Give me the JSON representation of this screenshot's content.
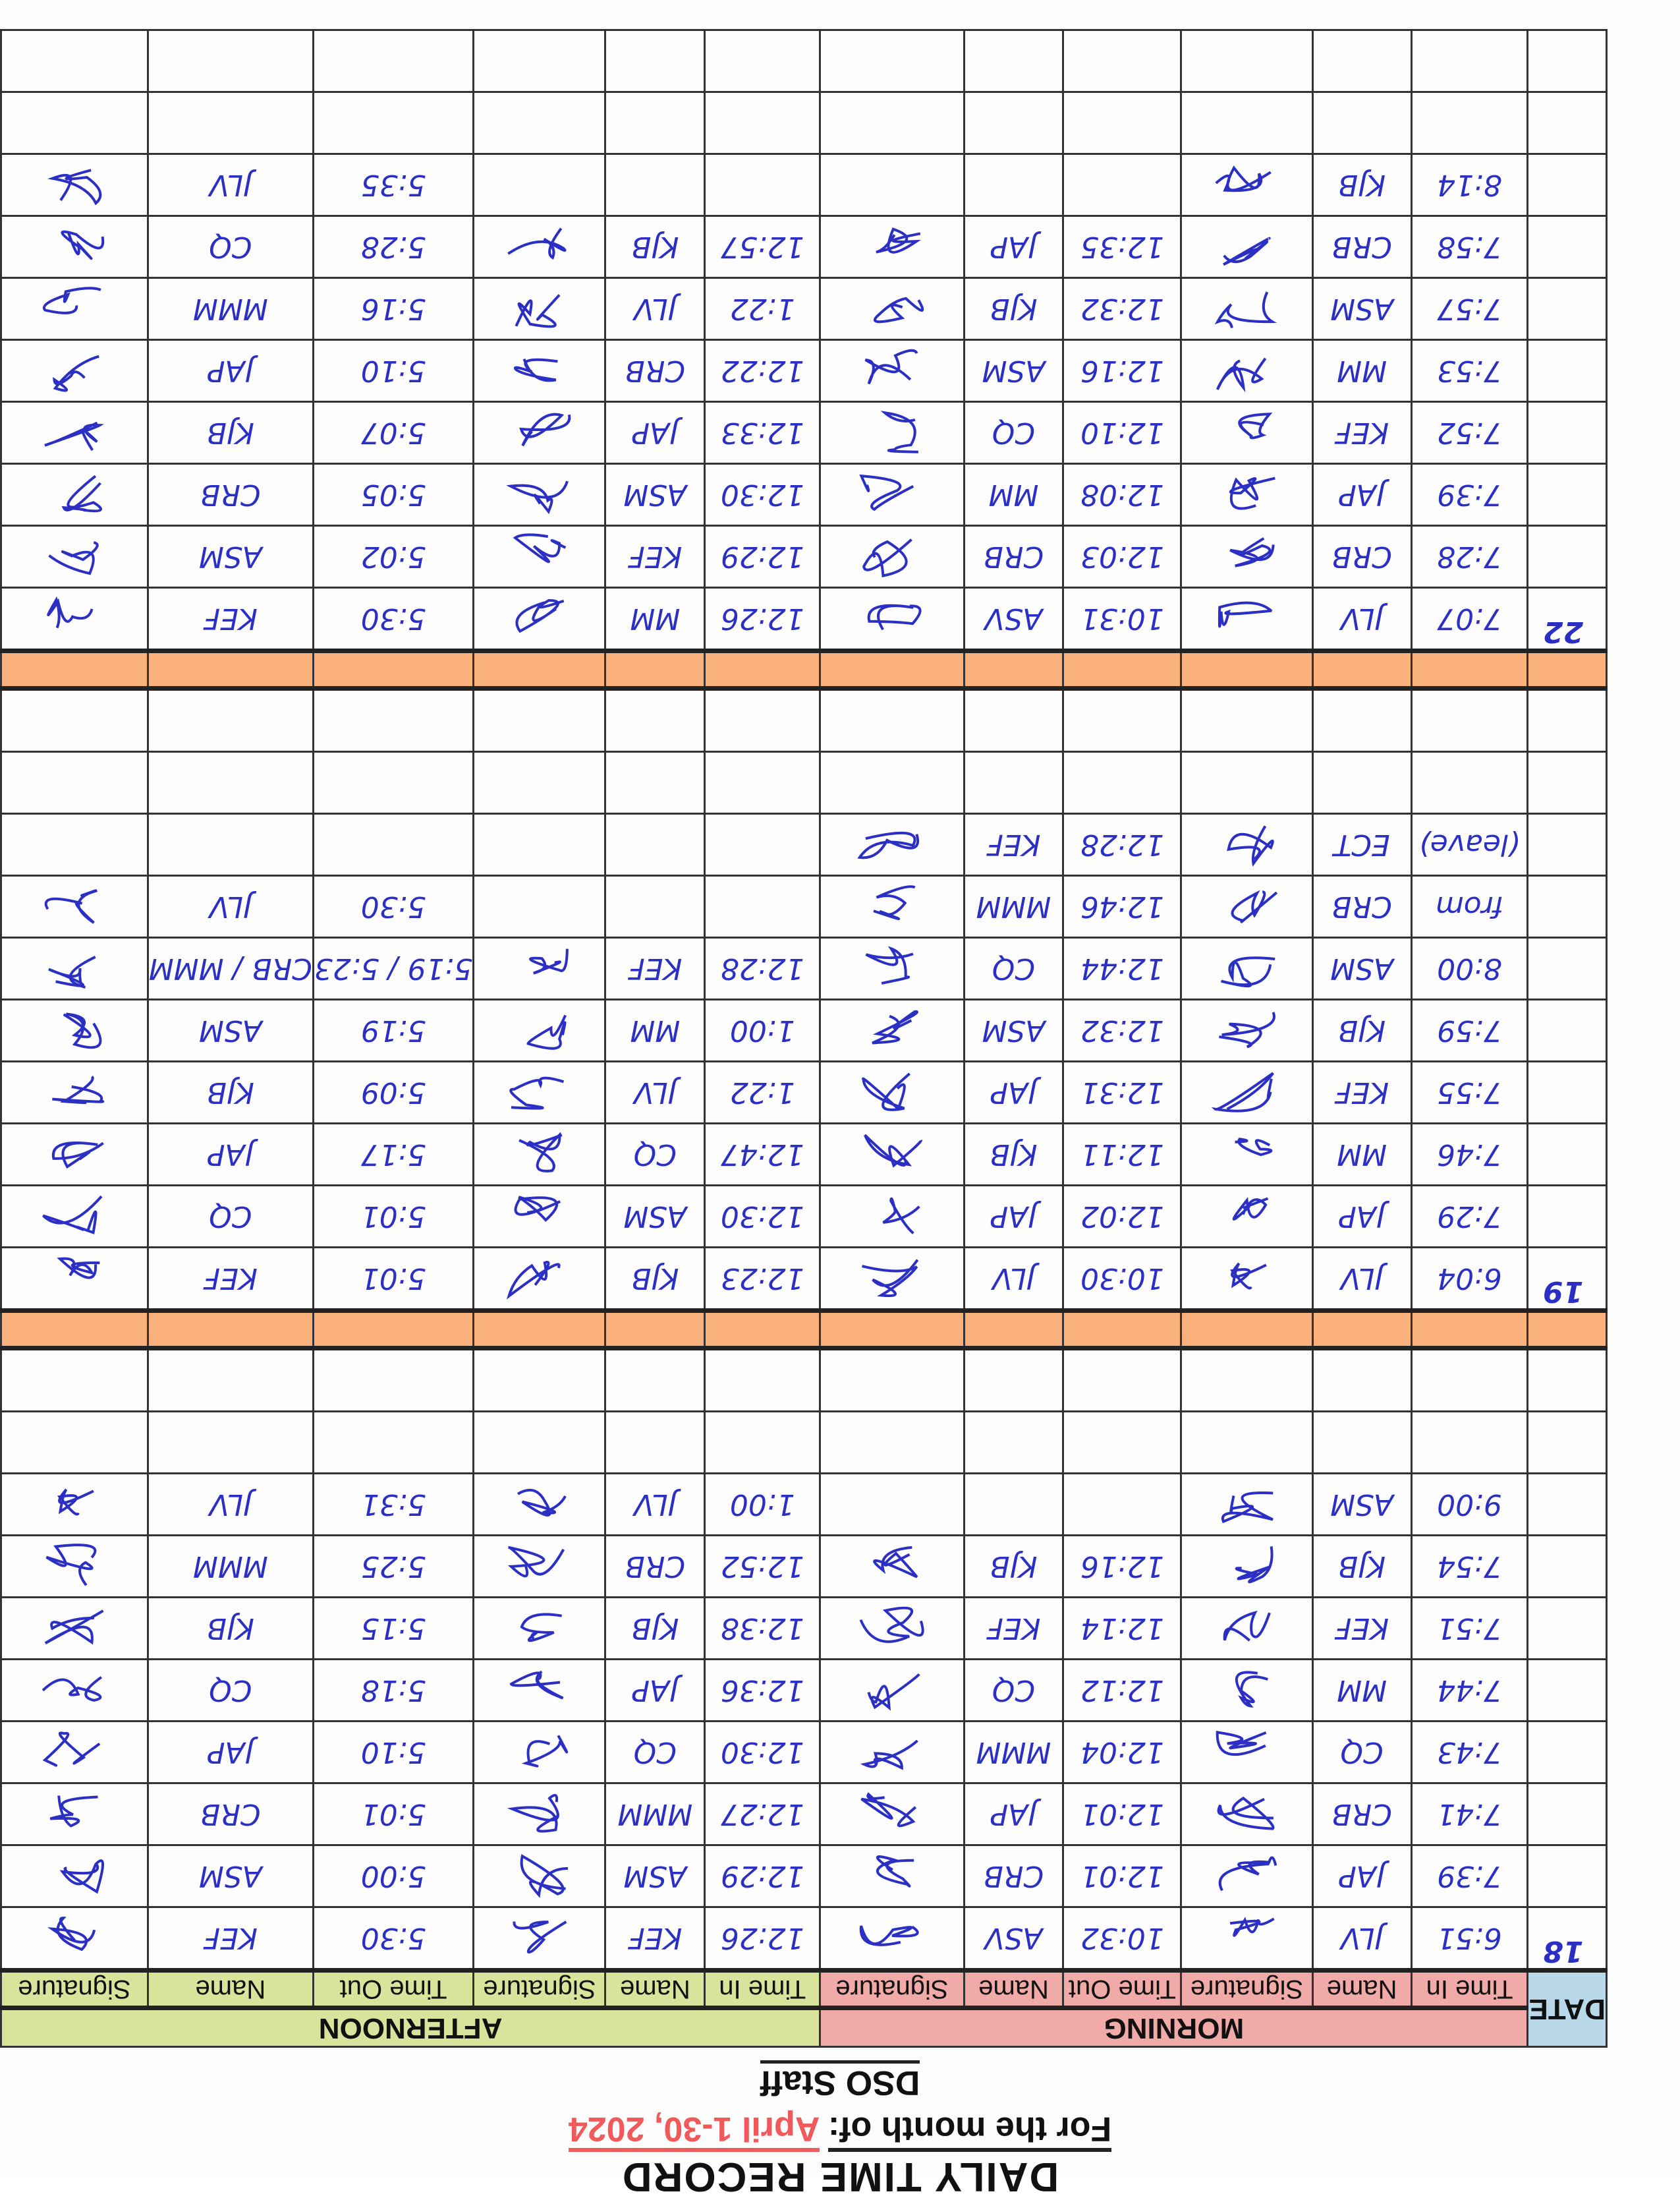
{
  "header": {
    "title": "DAILY TIME RECORD",
    "month_label": "For the month of:",
    "month_value": "April 1-30, 2024",
    "staff": "DSO Staff"
  },
  "colors": {
    "date_header": "#b9d9ea",
    "morning": "#f0aaa8",
    "afternoon": "#d9e39c",
    "separator": "#f9b07a",
    "ink": "#2b2fc4"
  },
  "table": {
    "date_label": "DATE",
    "morning_label": "MORNING",
    "afternoon_label": "AFTERNOON",
    "columns": [
      "Time In",
      "Name",
      "Signature",
      "Time Out",
      "Name",
      "Signature",
      "Time In",
      "Name",
      "Signature",
      "Time Out",
      "Name",
      "Signature"
    ],
    "blocks": [
      {
        "date": "18",
        "rows": [
          [
            "6:51",
            "JLV",
            "10:32",
            "ASV",
            "12:26",
            "KEF",
            "5:30",
            "KEF"
          ],
          [
            "7:39",
            "JAP",
            "12:01",
            "CRB",
            "12:29",
            "ASM",
            "5:00",
            "ASM"
          ],
          [
            "7:41",
            "CRB",
            "12:01",
            "JAP",
            "12:27",
            "MMM",
            "5:01",
            "CRB"
          ],
          [
            "7:43",
            "CQ",
            "12:04",
            "MMM",
            "12:30",
            "CQ",
            "5:10",
            "JAP"
          ],
          [
            "7:44",
            "MM",
            "12:12",
            "CQ",
            "12:36",
            "JAP",
            "5:18",
            "CQ"
          ],
          [
            "7:51",
            "KEF",
            "12:14",
            "KEF",
            "12:38",
            "KJB",
            "5:15",
            "KJB"
          ],
          [
            "7:54",
            "KJB",
            "12:16",
            "KJB",
            "12:52",
            "CRB",
            "5:25",
            "MMM"
          ],
          [
            "9:00",
            "ASM",
            "",
            "",
            "1:00",
            "JLV",
            "5:31",
            "JLV"
          ]
        ]
      },
      {
        "date": "19",
        "rows": [
          [
            "6:04",
            "JLV",
            "10:30",
            "JLV",
            "12:23",
            "KJB",
            "5:01",
            "KEF"
          ],
          [
            "7:29",
            "JAP",
            "12:02",
            "JAP",
            "12:30",
            "ASM",
            "5:01",
            "CQ"
          ],
          [
            "7:46",
            "MM",
            "12:11",
            "KJB",
            "12:47",
            "CQ",
            "5:17",
            "JAP"
          ],
          [
            "7:55",
            "KEF",
            "12:31",
            "JAP",
            "1:22",
            "JLV",
            "5:09",
            "KJB"
          ],
          [
            "7:59",
            "KJB",
            "12:32",
            "ASM",
            "1:00",
            "MM",
            "5:19",
            "ASM"
          ],
          [
            "8:00",
            "ASM",
            "12:44",
            "CQ",
            "12:28",
            "KEF",
            "5:19 / 5:23",
            "CRB / MMM"
          ],
          [
            "from",
            "CRB",
            "12:46",
            "MMM",
            "",
            "",
            "5:30",
            "JLV"
          ],
          [
            "(leave)",
            "ECT",
            "12:28",
            "KEF",
            "",
            "",
            "",
            ""
          ]
        ]
      },
      {
        "date": "22",
        "rows": [
          [
            "7:07",
            "JLV",
            "10:31",
            "ASV",
            "12:26",
            "MM",
            "5:30",
            "KEF"
          ],
          [
            "7:28",
            "CRB",
            "12:03",
            "CRB",
            "12:29",
            "KEF",
            "5:02",
            "ASM"
          ],
          [
            "7:39",
            "JAP",
            "12:08",
            "MM",
            "12:30",
            "ASM",
            "5:05",
            "CRB"
          ],
          [
            "7:52",
            "KEF",
            "12:10",
            "CQ",
            "12:33",
            "JAP",
            "5:07",
            "KJB"
          ],
          [
            "7:53",
            "MM",
            "12:16",
            "ASM",
            "12:22",
            "CRB",
            "5:10",
            "JAP"
          ],
          [
            "7:57",
            "ASM",
            "12:32",
            "KJB",
            "1:22",
            "JLV",
            "5:16",
            "MMM"
          ],
          [
            "7:58",
            "CRB",
            "12:35",
            "JAP",
            "12:57",
            "KJB",
            "5:28",
            "CQ"
          ],
          [
            "8:14",
            "KJB",
            "",
            "",
            "",
            "",
            "5:35",
            "JLV"
          ]
        ]
      }
    ]
  }
}
